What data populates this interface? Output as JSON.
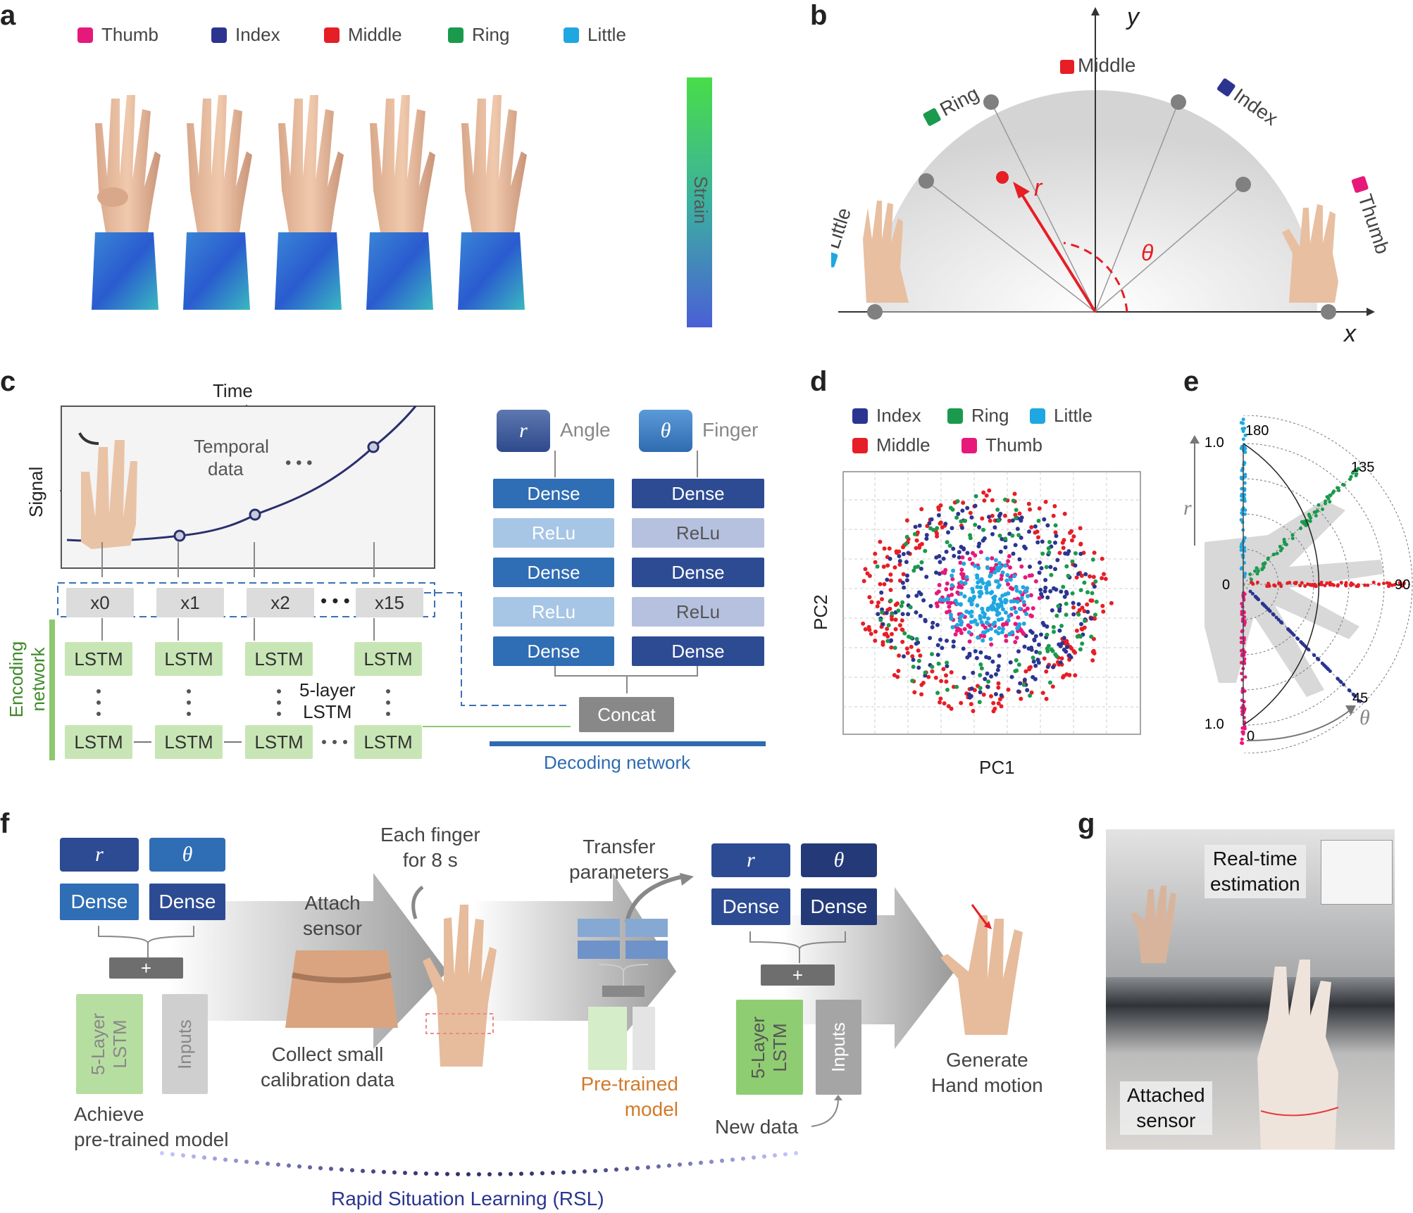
{
  "panels": [
    "a",
    "b",
    "c",
    "d",
    "e",
    "f",
    "g"
  ],
  "panel_a": {
    "legend": [
      {
        "label": "Thumb",
        "color": "#e6197a"
      },
      {
        "label": "Index",
        "color": "#2b3590"
      },
      {
        "label": "Middle",
        "color": "#e61e25"
      },
      {
        "label": "Ring",
        "color": "#1a9a4c"
      },
      {
        "label": "Little",
        "color": "#1fa7e1"
      }
    ],
    "colorbar_label": "Strain"
  },
  "panel_b": {
    "axis_x": "x",
    "axis_y": "y",
    "fingers": [
      {
        "label": "Middle",
        "color": "#e61e25"
      },
      {
        "label": "Ring",
        "color": "#1a9a4c"
      },
      {
        "label": "Index",
        "color": "#2b3590"
      },
      {
        "label": "Little",
        "color": "#1fa7e1"
      },
      {
        "label": "Thumb",
        "color": "#e6197a"
      }
    ],
    "r_label": "r",
    "theta_label": "θ"
  },
  "panel_c": {
    "time_label": "Time",
    "signal_label": "Signal",
    "temporal_label_1": "Temporal",
    "temporal_label_2": "data",
    "ellipsis": "• • •",
    "inputs": [
      "x0",
      "x1",
      "x2",
      "x15"
    ],
    "lstm": "LSTM",
    "layers_label_1": "5-layer",
    "layers_label_2": "LSTM",
    "encoding_1": "Encoding",
    "encoding_2": "network",
    "concat": "Concat",
    "decoding": "Decoding network",
    "out_r": "r",
    "out_theta": "θ",
    "angle": "Angle",
    "finger": "Finger",
    "dense": "Dense",
    "relu": "ReLu"
  },
  "panel_d": {
    "legend": [
      {
        "label": "Index",
        "color": "#2b3590"
      },
      {
        "label": "Ring",
        "color": "#1a9a4c"
      },
      {
        "label": "Little",
        "color": "#1fa7e1"
      },
      {
        "label": "Middle",
        "color": "#e61e25"
      },
      {
        "label": "Thumb",
        "color": "#e6197a"
      }
    ],
    "xlabel": "PC1",
    "ylabel": "PC2"
  },
  "panel_e": {
    "ticks": [
      "180",
      "135",
      "90",
      "45",
      "0"
    ],
    "r_ticks": [
      "1.0",
      "0",
      "1.0"
    ],
    "r_label": "r",
    "theta_label": "θ"
  },
  "panel_f": {
    "r": "r",
    "theta": "θ",
    "dense": "Dense",
    "plus": "+",
    "lstm_1": "5-Layer",
    "lstm_2": "LSTM",
    "inputs": "Inputs",
    "achieve_1": "Achieve",
    "achieve_2": "pre-trained model",
    "attach_1": "Attach",
    "attach_2": "sensor",
    "collect_1": "Collect small",
    "collect_2": "calibration data",
    "each_1": "Each finger",
    "each_2": "for 8 s",
    "transfer_1": "Transfer",
    "transfer_2": "parameters",
    "pretrained_1": "Pre-trained",
    "pretrained_2": "model",
    "newdata": "New data",
    "generate_1": "Generate",
    "generate_2": "Hand motion",
    "rsl": "Rapid Situation Learning (RSL)"
  },
  "panel_g": {
    "realtime_1": "Real-time",
    "realtime_2": "estimation",
    "attached_1": "Attached",
    "attached_2": "sensor"
  }
}
